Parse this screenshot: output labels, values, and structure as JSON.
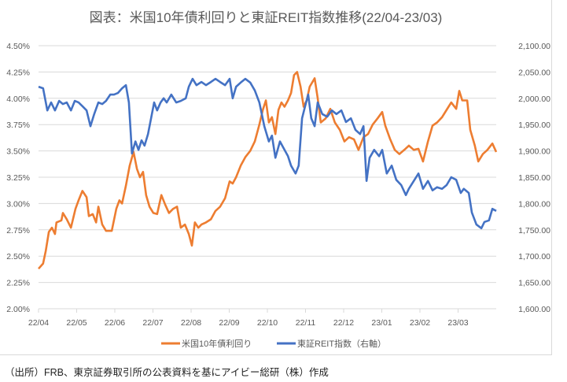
{
  "chart_data": {
    "type": "line",
    "title": "図表：米国10年債利回りと東証REIT指数推移(22/04-23/03)",
    "x_unit": "months since 2022/04",
    "xlim": [
      0,
      12
    ],
    "x_ticks": [
      0,
      1,
      2,
      3,
      4,
      5,
      6,
      7,
      8,
      9,
      10,
      11
    ],
    "x_tick_labels": [
      "22/04",
      "22/05",
      "22/06",
      "22/07",
      "22/08",
      "22/09",
      "22/10",
      "22/11",
      "22/12",
      "23/01",
      "23/02",
      "23/03"
    ],
    "y_left": {
      "lim": [
        2.0,
        4.5
      ],
      "ticks": [
        2.0,
        2.25,
        2.5,
        2.75,
        3.0,
        3.25,
        3.5,
        3.75,
        4.0,
        4.25,
        4.5
      ],
      "tick_labels": [
        "2.00%",
        "2.25%",
        "2.50%",
        "2.75%",
        "3.00%",
        "3.25%",
        "3.50%",
        "3.75%",
        "4.00%",
        "4.25%",
        "4.50%"
      ]
    },
    "y_right": {
      "lim": [
        1600,
        2100
      ],
      "ticks": [
        1600,
        1650,
        1700,
        1750,
        1800,
        1850,
        1900,
        1950,
        2000,
        2050,
        2100
      ],
      "tick_labels": [
        "1,600.00",
        "1,650.00",
        "1,700.00",
        "1,750.00",
        "1,800.00",
        "1,850.00",
        "1,900.00",
        "1,950.00",
        "2,000.00",
        "2,050.00",
        "2,100.00"
      ]
    },
    "grid": true,
    "legend_position": "bottom",
    "series": [
      {
        "name": "米国10年債利回り",
        "axis": "left",
        "color": "#ed7d31",
        "points": [
          [
            0,
            2.38
          ],
          [
            0.12,
            2.43
          ],
          [
            0.19,
            2.55
          ],
          [
            0.27,
            2.73
          ],
          [
            0.35,
            2.77
          ],
          [
            0.43,
            2.71
          ],
          [
            0.47,
            2.82
          ],
          [
            0.6,
            2.84
          ],
          [
            0.64,
            2.91
          ],
          [
            0.74,
            2.85
          ],
          [
            0.85,
            2.77
          ],
          [
            0.97,
            2.95
          ],
          [
            1.05,
            3.03
          ],
          [
            1.15,
            3.12
          ],
          [
            1.26,
            3.06
          ],
          [
            1.32,
            2.88
          ],
          [
            1.42,
            2.9
          ],
          [
            1.51,
            2.82
          ],
          [
            1.57,
            2.97
          ],
          [
            1.67,
            2.8
          ],
          [
            1.77,
            2.74
          ],
          [
            1.92,
            2.74
          ],
          [
            2.04,
            2.95
          ],
          [
            2.12,
            3.03
          ],
          [
            2.19,
            3.0
          ],
          [
            2.29,
            3.17
          ],
          [
            2.39,
            3.36
          ],
          [
            2.49,
            3.49
          ],
          [
            2.58,
            3.33
          ],
          [
            2.66,
            3.25
          ],
          [
            2.74,
            3.3
          ],
          [
            2.82,
            3.08
          ],
          [
            2.91,
            2.97
          ],
          [
            3.01,
            2.91
          ],
          [
            3.11,
            2.9
          ],
          [
            3.22,
            3.08
          ],
          [
            3.32,
            2.99
          ],
          [
            3.42,
            2.91
          ],
          [
            3.53,
            2.95
          ],
          [
            3.63,
            2.97
          ],
          [
            3.73,
            2.77
          ],
          [
            3.84,
            2.8
          ],
          [
            3.94,
            2.71
          ],
          [
            4.02,
            2.6
          ],
          [
            4.1,
            2.82
          ],
          [
            4.19,
            2.77
          ],
          [
            4.27,
            2.8
          ],
          [
            4.39,
            2.82
          ],
          [
            4.52,
            2.85
          ],
          [
            4.64,
            2.93
          ],
          [
            4.76,
            2.97
          ],
          [
            4.89,
            3.05
          ],
          [
            5.01,
            3.21
          ],
          [
            5.09,
            3.19
          ],
          [
            5.18,
            3.25
          ],
          [
            5.3,
            3.36
          ],
          [
            5.42,
            3.44
          ],
          [
            5.55,
            3.5
          ],
          [
            5.67,
            3.59
          ],
          [
            5.79,
            3.75
          ],
          [
            5.88,
            3.89
          ],
          [
            5.96,
            3.98
          ],
          [
            6.04,
            3.77
          ],
          [
            6.12,
            3.82
          ],
          [
            6.21,
            3.66
          ],
          [
            6.29,
            3.89
          ],
          [
            6.37,
            3.96
          ],
          [
            6.45,
            3.92
          ],
          [
            6.54,
            3.98
          ],
          [
            6.62,
            4.05
          ],
          [
            6.7,
            4.22
          ],
          [
            6.78,
            4.25
          ],
          [
            6.87,
            4.11
          ],
          [
            6.95,
            3.92
          ],
          [
            7.03,
            3.98
          ],
          [
            7.11,
            4.11
          ],
          [
            7.24,
            4.19
          ],
          [
            7.32,
            4.0
          ],
          [
            7.4,
            3.77
          ],
          [
            7.53,
            3.81
          ],
          [
            7.65,
            3.9
          ],
          [
            7.77,
            3.77
          ],
          [
            7.9,
            3.7
          ],
          [
            8.02,
            3.59
          ],
          [
            8.14,
            3.63
          ],
          [
            8.27,
            3.61
          ],
          [
            8.39,
            3.51
          ],
          [
            8.52,
            3.63
          ],
          [
            8.64,
            3.66
          ],
          [
            8.76,
            3.75
          ],
          [
            8.89,
            3.81
          ],
          [
            9.01,
            3.87
          ],
          [
            9.09,
            3.74
          ],
          [
            9.22,
            3.61
          ],
          [
            9.34,
            3.51
          ],
          [
            9.46,
            3.47
          ],
          [
            9.59,
            3.51
          ],
          [
            9.71,
            3.55
          ],
          [
            9.84,
            3.51
          ],
          [
            9.96,
            3.52
          ],
          [
            10.08,
            3.4
          ],
          [
            10.21,
            3.59
          ],
          [
            10.33,
            3.74
          ],
          [
            10.45,
            3.77
          ],
          [
            10.58,
            3.82
          ],
          [
            10.7,
            3.89
          ],
          [
            10.82,
            3.96
          ],
          [
            10.95,
            3.9
          ],
          [
            11.03,
            4.07
          ],
          [
            11.11,
            3.98
          ],
          [
            11.24,
            3.98
          ],
          [
            11.32,
            3.7
          ],
          [
            11.44,
            3.55
          ],
          [
            11.53,
            3.4
          ],
          [
            11.65,
            3.47
          ],
          [
            11.77,
            3.51
          ],
          [
            11.9,
            3.57
          ],
          [
            12,
            3.49
          ]
        ]
      },
      {
        "name": "東証REIT指数（右軸）",
        "axis": "right",
        "color": "#4472c4",
        "points": [
          [
            0,
            2022
          ],
          [
            0.12,
            2019
          ],
          [
            0.23,
            1977
          ],
          [
            0.33,
            1992
          ],
          [
            0.43,
            1977
          ],
          [
            0.54,
            1995
          ],
          [
            0.64,
            1989
          ],
          [
            0.74,
            1992
          ],
          [
            0.85,
            1977
          ],
          [
            0.95,
            1995
          ],
          [
            1.05,
            1992
          ],
          [
            1.15,
            1985
          ],
          [
            1.26,
            1977
          ],
          [
            1.36,
            1947
          ],
          [
            1.46,
            1970
          ],
          [
            1.57,
            1992
          ],
          [
            1.67,
            1989
          ],
          [
            1.77,
            1995
          ],
          [
            1.88,
            2007
          ],
          [
            1.98,
            2007
          ],
          [
            2.08,
            2010
          ],
          [
            2.19,
            2019
          ],
          [
            2.29,
            2025
          ],
          [
            2.37,
            1992
          ],
          [
            2.45,
            1895
          ],
          [
            2.54,
            1918
          ],
          [
            2.62,
            1902
          ],
          [
            2.7,
            1920
          ],
          [
            2.78,
            1910
          ],
          [
            2.87,
            1932
          ],
          [
            2.95,
            1962
          ],
          [
            3.03,
            1992
          ],
          [
            3.11,
            1977
          ],
          [
            3.2,
            1992
          ],
          [
            3.28,
            2000
          ],
          [
            3.36,
            1992
          ],
          [
            3.48,
            2007
          ],
          [
            3.61,
            1992
          ],
          [
            3.73,
            1995
          ],
          [
            3.86,
            2000
          ],
          [
            3.94,
            2022
          ],
          [
            4.04,
            2037
          ],
          [
            4.14,
            2025
          ],
          [
            4.27,
            2031
          ],
          [
            4.39,
            2025
          ],
          [
            4.52,
            2031
          ],
          [
            4.64,
            2037
          ],
          [
            4.76,
            2031
          ],
          [
            4.89,
            2025
          ],
          [
            5.01,
            2037
          ],
          [
            5.09,
            2000
          ],
          [
            5.18,
            2022
          ],
          [
            5.3,
            2030
          ],
          [
            5.42,
            2037
          ],
          [
            5.55,
            2030
          ],
          [
            5.67,
            2015
          ],
          [
            5.79,
            1992
          ],
          [
            5.92,
            1947
          ],
          [
            6.04,
            1918
          ],
          [
            6.12,
            1929
          ],
          [
            6.21,
            1887
          ],
          [
            6.33,
            1918
          ],
          [
            6.45,
            1902
          ],
          [
            6.54,
            1890
          ],
          [
            6.62,
            1872
          ],
          [
            6.74,
            1857
          ],
          [
            6.82,
            1872
          ],
          [
            6.91,
            1962
          ],
          [
            6.99,
            1985
          ],
          [
            7.07,
            2007
          ],
          [
            7.15,
            1962
          ],
          [
            7.24,
            1947
          ],
          [
            7.32,
            1992
          ],
          [
            7.44,
            1970
          ],
          [
            7.57,
            1965
          ],
          [
            7.69,
            1977
          ],
          [
            7.81,
            1970
          ],
          [
            7.94,
            1977
          ],
          [
            8.06,
            1955
          ],
          [
            8.19,
            1962
          ],
          [
            8.31,
            1940
          ],
          [
            8.43,
            1932
          ],
          [
            8.52,
            1947
          ],
          [
            8.6,
            1843
          ],
          [
            8.68,
            1887
          ],
          [
            8.8,
            1902
          ],
          [
            8.93,
            1890
          ],
          [
            9.01,
            1902
          ],
          [
            9.13,
            1857
          ],
          [
            9.26,
            1872
          ],
          [
            9.38,
            1845
          ],
          [
            9.51,
            1835
          ],
          [
            9.63,
            1816
          ],
          [
            9.71,
            1828
          ],
          [
            9.84,
            1843
          ],
          [
            9.96,
            1857
          ],
          [
            10.08,
            1828
          ],
          [
            10.21,
            1843
          ],
          [
            10.33,
            1825
          ],
          [
            10.45,
            1831
          ],
          [
            10.58,
            1828
          ],
          [
            10.7,
            1835
          ],
          [
            10.82,
            1850
          ],
          [
            10.95,
            1845
          ],
          [
            11.07,
            1820
          ],
          [
            11.15,
            1828
          ],
          [
            11.28,
            1820
          ],
          [
            11.36,
            1783
          ],
          [
            11.48,
            1760
          ],
          [
            11.61,
            1753
          ],
          [
            11.69,
            1765
          ],
          [
            11.81,
            1768
          ],
          [
            11.9,
            1790
          ],
          [
            12,
            1786
          ]
        ]
      }
    ]
  },
  "source": "（出所）FRB、東京証券取引所の公表資料を基にアイビー総研（株）作成"
}
